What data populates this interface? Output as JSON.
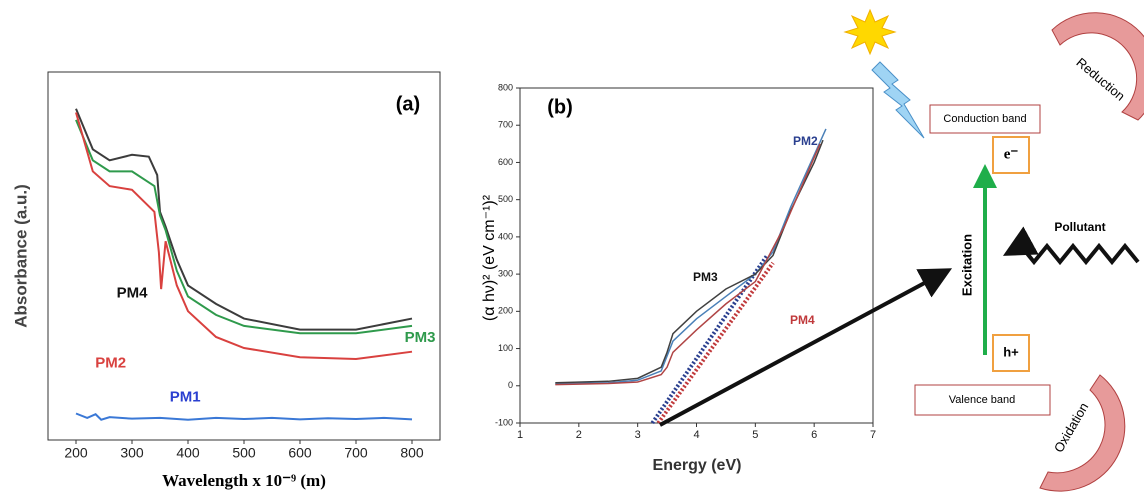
{
  "chart_data": [
    {
      "type": "line",
      "panel_label": "(a)",
      "y_label": "Absorbance (a.u.)",
      "x_label": "Wavelength x 10⁻⁹ (m)",
      "xlim": [
        150,
        850
      ],
      "xticks": [
        200,
        300,
        400,
        500,
        600,
        700,
        800
      ],
      "ylim": [
        0,
        10
      ],
      "series": [
        {
          "name": "PM4",
          "color": "#3c3c3c",
          "x": [
            200,
            230,
            260,
            300,
            330,
            345,
            350,
            360,
            380,
            400,
            450,
            500,
            600,
            700,
            800
          ],
          "values": [
            9.0,
            7.9,
            7.6,
            7.75,
            7.7,
            7.2,
            6.2,
            5.8,
            4.9,
            4.2,
            3.7,
            3.3,
            3.0,
            3.0,
            3.3
          ]
        },
        {
          "name": "PM3",
          "color": "#2f9a4c",
          "x": [
            200,
            230,
            260,
            300,
            340,
            350,
            360,
            380,
            400,
            450,
            500,
            600,
            700,
            800
          ],
          "values": [
            8.7,
            7.6,
            7.3,
            7.3,
            6.9,
            6.1,
            5.7,
            4.6,
            3.9,
            3.4,
            3.1,
            2.9,
            2.9,
            3.1
          ]
        },
        {
          "name": "PM2",
          "color": "#d9413f",
          "x": [
            200,
            230,
            260,
            300,
            340,
            348,
            352,
            360,
            380,
            400,
            450,
            500,
            600,
            700,
            800
          ],
          "values": [
            8.9,
            7.3,
            6.9,
            6.8,
            6.2,
            5.1,
            4.1,
            5.4,
            4.2,
            3.5,
            2.8,
            2.5,
            2.25,
            2.2,
            2.4
          ]
        },
        {
          "name": "PM1",
          "color": "#3a78d6",
          "x": [
            200,
            220,
            235,
            245,
            260,
            300,
            350,
            400,
            450,
            500,
            550,
            600,
            650,
            700,
            750,
            800
          ],
          "values": [
            0.72,
            0.6,
            0.7,
            0.55,
            0.62,
            0.58,
            0.6,
            0.55,
            0.6,
            0.57,
            0.6,
            0.56,
            0.59,
            0.57,
            0.6,
            0.56
          ]
        }
      ]
    },
    {
      "type": "line",
      "panel_label": "(b)",
      "y_label": "(α hν)² (eV cm⁻¹)²",
      "x_label": "Energy (eV)",
      "xlim": [
        1,
        7
      ],
      "xticks": [
        1,
        2,
        3,
        4,
        5,
        6,
        7
      ],
      "ylim": [
        -100,
        800
      ],
      "yticks": [
        -100,
        0,
        100,
        200,
        300,
        400,
        500,
        600,
        700,
        800
      ],
      "series": [
        {
          "name": "PM2",
          "color": "#4a80b8",
          "x": [
            1.6,
            2.5,
            3.0,
            3.4,
            3.5,
            3.6,
            4.0,
            4.5,
            5.0,
            5.3,
            5.6,
            6.0,
            6.2
          ],
          "values": [
            5,
            8,
            15,
            40,
            80,
            120,
            180,
            240,
            300,
            360,
            480,
            620,
            690
          ]
        },
        {
          "name": "PM3",
          "color": "#404040",
          "x": [
            1.6,
            2.5,
            3.0,
            3.4,
            3.5,
            3.6,
            4.0,
            4.5,
            5.0,
            5.3,
            5.6,
            6.0,
            6.15
          ],
          "values": [
            8,
            12,
            20,
            50,
            90,
            140,
            200,
            260,
            300,
            350,
            470,
            600,
            660
          ]
        },
        {
          "name": "PM4",
          "color": "#b04545",
          "x": [
            1.6,
            2.5,
            3.0,
            3.4,
            3.5,
            3.6,
            4.0,
            4.5,
            5.0,
            5.5,
            6.1
          ],
          "values": [
            3,
            6,
            10,
            30,
            50,
            90,
            150,
            220,
            280,
            430,
            650
          ]
        }
      ],
      "tangents": [
        {
          "color": "#2a3f8f",
          "x": [
            3.25,
            5.2
          ],
          "values": [
            -100,
            350
          ]
        },
        {
          "color": "#c0393b",
          "x": [
            3.35,
            5.3
          ],
          "values": [
            -100,
            330
          ]
        }
      ]
    }
  ],
  "diagram": {
    "reduction": "Reduction",
    "conduction_band": "Conduction band",
    "electron": "e⁻",
    "pollutant": "Pollutant",
    "excitation": "Excitation",
    "hole": "h+",
    "valence_band": "Valence band",
    "oxidation": "Oxidation"
  }
}
